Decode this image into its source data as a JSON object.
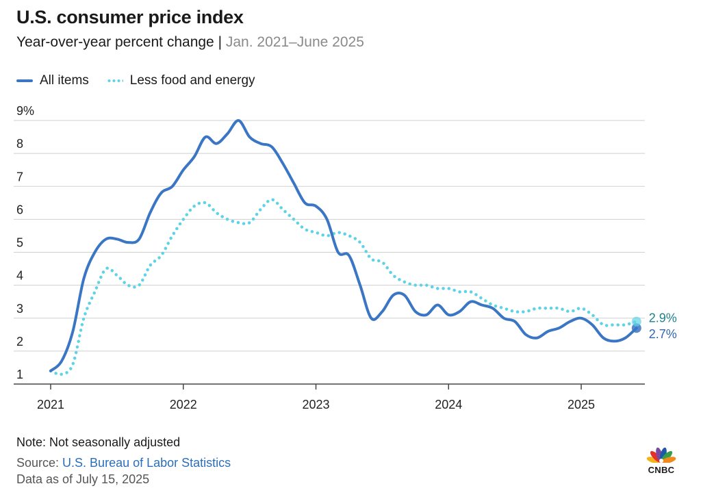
{
  "title": "U.S. consumer price index",
  "subtitle_main": "Year-over-year percent change |",
  "subtitle_range": "Jan. 2021–June 2025",
  "legend": [
    {
      "label": "All items",
      "style": "solid",
      "color": "#3a76c4"
    },
    {
      "label": "Less food and energy",
      "style": "dotted",
      "color": "#5fd3e6"
    }
  ],
  "chart_data": {
    "type": "line",
    "ylim": [
      1,
      9
    ],
    "yticks": [
      "9%",
      "8",
      "7",
      "6",
      "5",
      "4",
      "3",
      "2",
      "1"
    ],
    "xticks": [
      "2021",
      "2022",
      "2023",
      "2024",
      "2025"
    ],
    "grid": true,
    "series": [
      {
        "name": "All items",
        "style": "solid",
        "color": "#3a76c4",
        "end_label": "2.7%",
        "points": [
          [
            2021.0,
            1.4
          ],
          [
            2021.083,
            1.7
          ],
          [
            2021.167,
            2.6
          ],
          [
            2021.25,
            4.2
          ],
          [
            2021.333,
            5.0
          ],
          [
            2021.417,
            5.4
          ],
          [
            2021.5,
            5.4
          ],
          [
            2021.583,
            5.3
          ],
          [
            2021.667,
            5.4
          ],
          [
            2021.75,
            6.2
          ],
          [
            2021.833,
            6.8
          ],
          [
            2021.917,
            7.0
          ],
          [
            2022.0,
            7.5
          ],
          [
            2022.083,
            7.9
          ],
          [
            2022.167,
            8.5
          ],
          [
            2022.25,
            8.3
          ],
          [
            2022.333,
            8.6
          ],
          [
            2022.417,
            9.0
          ],
          [
            2022.5,
            8.5
          ],
          [
            2022.583,
            8.3
          ],
          [
            2022.667,
            8.2
          ],
          [
            2022.75,
            7.7
          ],
          [
            2022.833,
            7.1
          ],
          [
            2022.917,
            6.5
          ],
          [
            2023.0,
            6.4
          ],
          [
            2023.083,
            6.0
          ],
          [
            2023.167,
            5.0
          ],
          [
            2023.25,
            4.9
          ],
          [
            2023.333,
            4.0
          ],
          [
            2023.417,
            3.0
          ],
          [
            2023.5,
            3.2
          ],
          [
            2023.583,
            3.7
          ],
          [
            2023.667,
            3.7
          ],
          [
            2023.75,
            3.2
          ],
          [
            2023.833,
            3.1
          ],
          [
            2023.917,
            3.4
          ],
          [
            2024.0,
            3.1
          ],
          [
            2024.083,
            3.2
          ],
          [
            2024.167,
            3.5
          ],
          [
            2024.25,
            3.4
          ],
          [
            2024.333,
            3.3
          ],
          [
            2024.417,
            3.0
          ],
          [
            2024.5,
            2.9
          ],
          [
            2024.583,
            2.5
          ],
          [
            2024.667,
            2.4
          ],
          [
            2024.75,
            2.6
          ],
          [
            2024.833,
            2.7
          ],
          [
            2024.917,
            2.9
          ],
          [
            2025.0,
            3.0
          ],
          [
            2025.083,
            2.8
          ],
          [
            2025.167,
            2.4
          ],
          [
            2025.25,
            2.3
          ],
          [
            2025.333,
            2.4
          ],
          [
            2025.417,
            2.7
          ]
        ]
      },
      {
        "name": "Less food and energy",
        "style": "dotted",
        "color": "#5fd3e6",
        "end_label": "2.9%",
        "points": [
          [
            2021.0,
            1.4
          ],
          [
            2021.083,
            1.3
          ],
          [
            2021.167,
            1.6
          ],
          [
            2021.25,
            3.0
          ],
          [
            2021.333,
            3.8
          ],
          [
            2021.417,
            4.5
          ],
          [
            2021.5,
            4.3
          ],
          [
            2021.583,
            4.0
          ],
          [
            2021.667,
            4.0
          ],
          [
            2021.75,
            4.6
          ],
          [
            2021.833,
            4.9
          ],
          [
            2021.917,
            5.5
          ],
          [
            2022.0,
            6.0
          ],
          [
            2022.083,
            6.4
          ],
          [
            2022.167,
            6.5
          ],
          [
            2022.25,
            6.2
          ],
          [
            2022.333,
            6.0
          ],
          [
            2022.417,
            5.9
          ],
          [
            2022.5,
            5.9
          ],
          [
            2022.583,
            6.3
          ],
          [
            2022.667,
            6.6
          ],
          [
            2022.75,
            6.3
          ],
          [
            2022.833,
            6.0
          ],
          [
            2022.917,
            5.7
          ],
          [
            2023.0,
            5.6
          ],
          [
            2023.083,
            5.5
          ],
          [
            2023.167,
            5.6
          ],
          [
            2023.25,
            5.5
          ],
          [
            2023.333,
            5.3
          ],
          [
            2023.417,
            4.8
          ],
          [
            2023.5,
            4.7
          ],
          [
            2023.583,
            4.3
          ],
          [
            2023.667,
            4.1
          ],
          [
            2023.75,
            4.0
          ],
          [
            2023.833,
            4.0
          ],
          [
            2023.917,
            3.9
          ],
          [
            2024.0,
            3.9
          ],
          [
            2024.083,
            3.8
          ],
          [
            2024.167,
            3.8
          ],
          [
            2024.25,
            3.6
          ],
          [
            2024.333,
            3.4
          ],
          [
            2024.417,
            3.3
          ],
          [
            2024.5,
            3.2
          ],
          [
            2024.583,
            3.2
          ],
          [
            2024.667,
            3.3
          ],
          [
            2024.75,
            3.3
          ],
          [
            2024.833,
            3.3
          ],
          [
            2024.917,
            3.2
          ],
          [
            2025.0,
            3.3
          ],
          [
            2025.083,
            3.1
          ],
          [
            2025.167,
            2.8
          ],
          [
            2025.25,
            2.8
          ],
          [
            2025.333,
            2.8
          ],
          [
            2025.417,
            2.9
          ]
        ]
      }
    ]
  },
  "footer": {
    "note": "Note: Not seasonally adjusted",
    "source_prefix": "Source: ",
    "source_link": "U.S. Bureau of Labor Statistics",
    "as_of": "Data as of July 15, 2025"
  },
  "logo_text": "CNBC"
}
